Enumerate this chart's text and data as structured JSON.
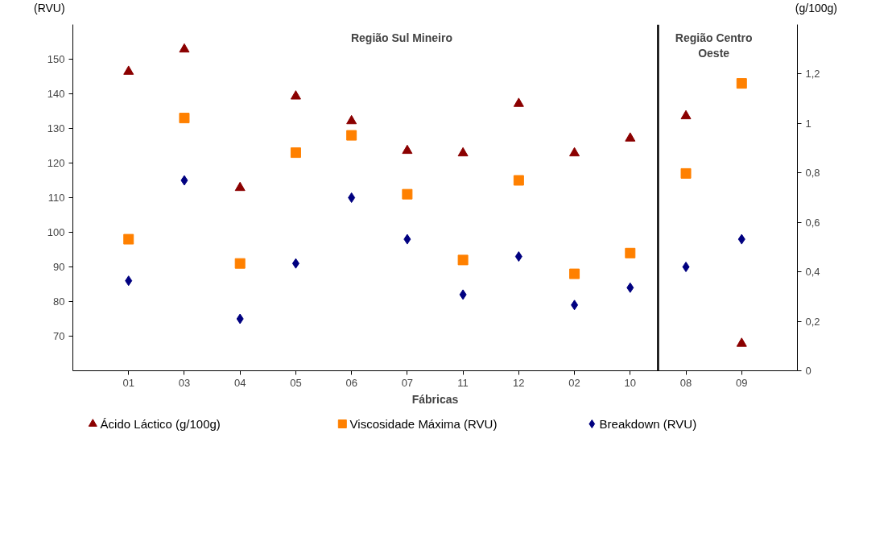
{
  "chart_data": {
    "type": "scatter",
    "xlabel": "Fábricas",
    "ylabel": "(RVU)",
    "y2label": "(g/100g)",
    "categories": [
      "01",
      "03",
      "04",
      "05",
      "06",
      "07",
      "11",
      "12",
      "02",
      "10",
      "08",
      "09"
    ],
    "ylim": [
      60,
      160
    ],
    "yticks": [
      70,
      80,
      90,
      100,
      110,
      120,
      130,
      140,
      150
    ],
    "y2lim": [
      0,
      1.4
    ],
    "y2ticks": [
      0,
      {
        "value": 0.2,
        "label": "0,2"
      },
      {
        "value": 0.4,
        "label": "0,4"
      },
      {
        "value": 0.6,
        "label": "0,6"
      },
      {
        "value": 0.8,
        "label": "0,8"
      },
      1,
      {
        "value": 1.2,
        "label": "1,2"
      }
    ],
    "series": [
      {
        "name": "Ácido Láctico (g/100g)",
        "color": "#8b0000",
        "marker": "triangle",
        "axis": "y2",
        "values": [
          1.21,
          1.3,
          0.74,
          1.11,
          1.01,
          0.89,
          0.88,
          1.08,
          0.88,
          0.94,
          1.03,
          0.11
        ]
      },
      {
        "name": "Viscosidade Máxima (RVU)",
        "color": "#ff8000",
        "marker": "square",
        "values": [
          98,
          133,
          91,
          123,
          128,
          111,
          92,
          115,
          88,
          94,
          117,
          143
        ]
      },
      {
        "name": "Breakdown (RVU)",
        "color": "#000080",
        "marker": "diamond",
        "values": [
          86,
          115,
          75,
          91,
          110,
          98,
          82,
          93,
          79,
          84,
          90,
          98
        ]
      }
    ],
    "annotations": [
      "Região Sul Mineiro",
      "Região Centro\nOeste"
    ],
    "legend": "bottom",
    "grid": false
  }
}
